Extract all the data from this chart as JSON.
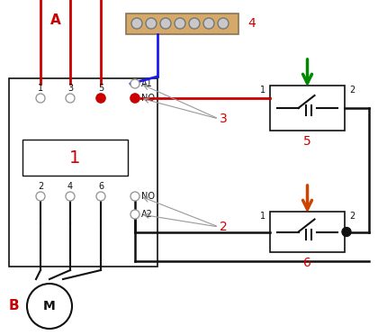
{
  "bg_color": "#ffffff",
  "label_1": "1",
  "label_2": "2",
  "label_3": "3",
  "label_4": "4",
  "label_5": "5",
  "label_6": "6",
  "label_A": "A",
  "label_B": "B",
  "label_M": "M",
  "label_NO": "NO",
  "label_A1": "A1",
  "label_A2": "A2",
  "red_color": "#cc0000",
  "blue_color": "#1a1aee",
  "green_color": "#008800",
  "orange_color": "#cc4400",
  "black_color": "#111111",
  "gray_color": "#999999",
  "tan_color": "#D4A96A",
  "tan_border": "#8B7355",
  "dot_gray": "#888888",
  "connector_circle": "#aaaaaa"
}
